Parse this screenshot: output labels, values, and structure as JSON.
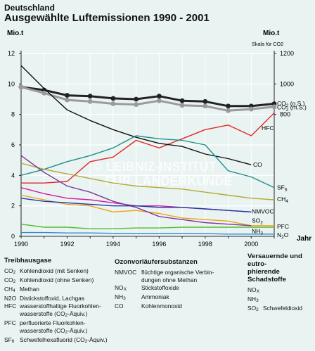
{
  "title_line1": "Deutschland",
  "title_line2": "Ausgewählte Luftemissionen 1990 - 2001",
  "chart_data": {
    "type": "line",
    "x": [
      1990,
      1991,
      1992,
      1993,
      1994,
      1995,
      1996,
      1997,
      1998,
      1999,
      2000,
      2001
    ],
    "xticks": [
      1990,
      1992,
      1994,
      1996,
      1998,
      2000
    ],
    "xlabel": "Jahr",
    "ylabel_left": "Mio.t",
    "ylabel_right": "Mio.t",
    "ylabel_right_note": "(Skala für CO2)",
    "ylim_left": [
      0,
      12
    ],
    "yticks_left": [
      0,
      2,
      4,
      6,
      8,
      10,
      12
    ],
    "ylim_right": [
      0,
      1200
    ],
    "yticks_right": [
      800,
      1000,
      1200
    ],
    "watermark": "© LEIBNIZ-INSTITUT FÜR LÄNDERKUNDE",
    "series": [
      {
        "name": "CO2 (o.S.)",
        "axis": "right",
        "color": "#222222",
        "markers": true,
        "values": [
          980,
          960,
          925,
          920,
          905,
          900,
          920,
          890,
          885,
          855,
          855,
          870
        ]
      },
      {
        "name": "CO2 (m.S.)",
        "axis": "right",
        "color": "#9a9a9a",
        "markers": true,
        "values": [
          980,
          940,
          895,
          885,
          870,
          865,
          890,
          860,
          855,
          825,
          835,
          850
        ]
      },
      {
        "name": "HFC",
        "axis": "left",
        "color": "#e02828",
        "values": [
          3.5,
          3.5,
          3.6,
          4.9,
          5.2,
          6.3,
          5.8,
          6.4,
          7.0,
          7.3,
          6.6,
          8.1
        ]
      },
      {
        "name": "CO",
        "axis": "left",
        "color": "#111111",
        "values": [
          11.2,
          9.7,
          8.3,
          7.6,
          7.0,
          6.5,
          6.1,
          5.9,
          5.4,
          5.1,
          4.7,
          null
        ]
      },
      {
        "name": "SF6",
        "axis": "left",
        "color": "#1e8f8a",
        "values": [
          4.0,
          4.4,
          4.9,
          5.3,
          5.8,
          6.6,
          6.4,
          6.3,
          6.0,
          4.3,
          3.9,
          3.2
        ]
      },
      {
        "name": "CH4",
        "axis": "left",
        "color": "#b4a833",
        "values": [
          4.8,
          4.4,
          4.1,
          3.8,
          3.5,
          3.3,
          3.2,
          3.1,
          2.9,
          2.7,
          2.5,
          2.4
        ]
      },
      {
        "name": "NMVOC",
        "axis": "left",
        "color": "#d21d9f",
        "values": [
          3.2,
          2.8,
          2.5,
          2.4,
          2.2,
          2.0,
          2.0,
          1.9,
          1.8,
          1.7,
          1.6,
          null
        ]
      },
      {
        "name": "SO2",
        "axis": "left",
        "color": "#f0a01a",
        "values": [
          2.7,
          2.4,
          2.1,
          2.0,
          1.6,
          1.7,
          1.5,
          1.2,
          1.1,
          1.0,
          0.7,
          0.7
        ]
      },
      {
        "name": "PFC",
        "axis": "left",
        "color": "#55bb2e",
        "values": [
          0.8,
          0.6,
          0.6,
          0.5,
          0.5,
          0.55,
          0.55,
          0.6,
          0.6,
          0.6,
          0.6,
          0.6
        ]
      },
      {
        "name": "NH3",
        "axis": "left",
        "color": "#7a3a9a",
        "values": [
          5.3,
          4.2,
          3.3,
          2.9,
          2.3,
          1.9,
          1.3,
          1.1,
          0.9,
          0.8,
          0.7,
          null
        ]
      },
      {
        "name": "N2O",
        "axis": "left",
        "color": "#2a8ad8",
        "values": [
          0.25,
          0.25,
          0.22,
          0.22,
          0.2,
          0.2,
          0.2,
          0.2,
          0.18,
          0.15,
          0.15,
          0.15
        ]
      },
      {
        "name": "",
        "axis": "left",
        "color": "#203aa6",
        "values": [
          2.5,
          2.3,
          2.2,
          2.1,
          2.0,
          2.0,
          1.9,
          1.9,
          1.8,
          1.7,
          1.6,
          null
        ]
      }
    ],
    "line_labels": {
      "CO2 (o.S.)": "CO2 (o.S.)",
      "CO2 (m.S.)": "CO2 (m.S.)",
      "HFC": "HFC",
      "CO": "CO",
      "SF6": "SF6",
      "CH4": "CH4",
      "NMVOC": "NMVOC",
      "SO2": "SO2",
      "PFC": "PFC",
      "NH3": "NH3",
      "N2O": "N2O"
    }
  },
  "legend": {
    "treibhaus": {
      "heading": "Treibhausgase",
      "items": [
        {
          "code": "CO2",
          "desc": "Kohlendioxid (mit Senken)"
        },
        {
          "code": "CO2",
          "desc": "Kohlendioxid (ohne Senken)"
        },
        {
          "code": "CH4",
          "desc": "Methan"
        },
        {
          "code": "N2O",
          "desc": "Distickstoffoxid, Lachgas"
        },
        {
          "code": "HFC",
          "desc": "wasserstoffhaltige Fluorkohlen-"
        },
        {
          "code": "",
          "desc": "wasserstoffe (CO2-Äquiv.)"
        },
        {
          "code": "PFC",
          "desc": "perfluorierte Fluorkohlen-"
        },
        {
          "code": "",
          "desc": "wasserstoffe (CO2-Äquiv.)"
        },
        {
          "code": "SF6",
          "desc": "Schwefelhexafluorid (CO2-Äquiv.)"
        }
      ]
    },
    "ozon": {
      "heading": "Ozonvorläufersubstanzen",
      "items": [
        {
          "code": "NMVOC",
          "desc": "flüchtige organische Verbin-"
        },
        {
          "code": "",
          "desc": "dungen ohne Methan"
        },
        {
          "code": "NOX",
          "desc": "Stickstoffoxide"
        },
        {
          "code": "NH3",
          "desc": "Ammoniak"
        },
        {
          "code": "CO",
          "desc": "Kohlenmonoxid"
        }
      ]
    },
    "versauernd": {
      "heading_line1": "Versauernde und eutro-",
      "heading_line2": "phierende Schadstoffe",
      "items": [
        {
          "code": "NOX",
          "desc": ""
        },
        {
          "code": "NH3",
          "desc": ""
        },
        {
          "code": "SO2",
          "desc": "Schwefeldioxid"
        }
      ]
    }
  }
}
